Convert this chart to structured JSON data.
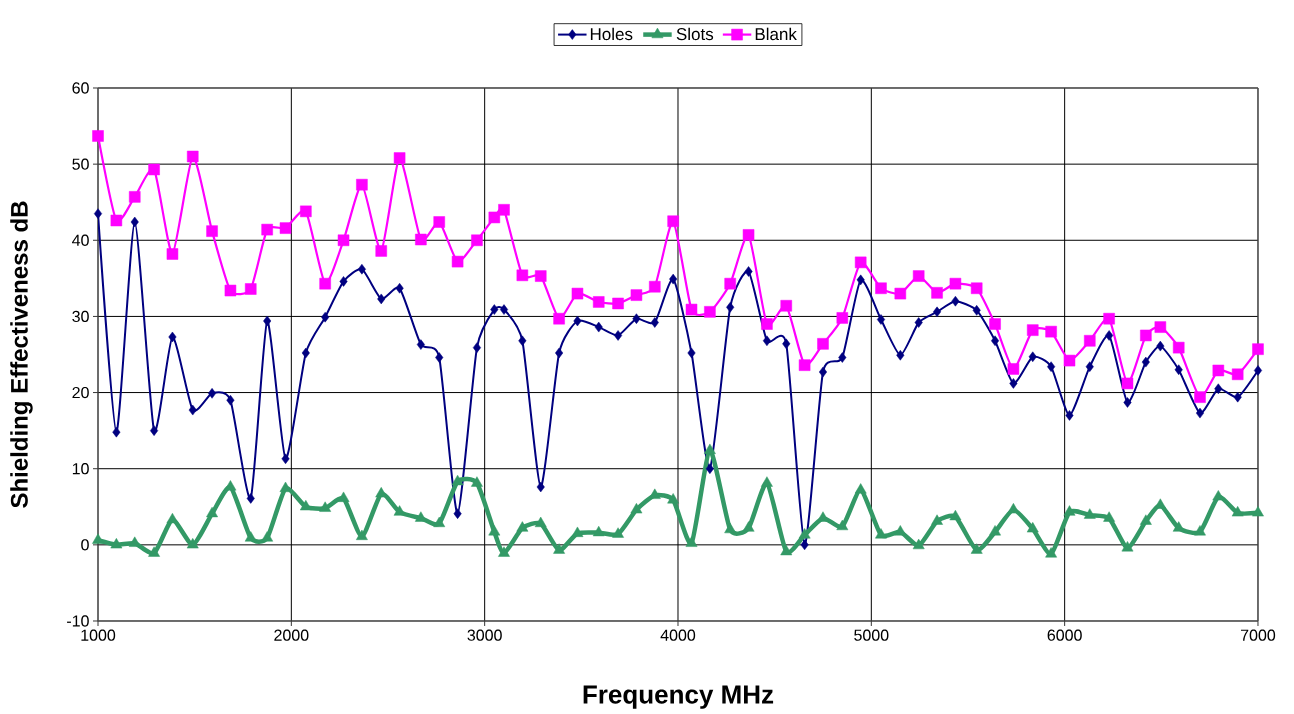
{
  "chart_data": {
    "type": "line",
    "xlabel": "Frequency MHz",
    "ylabel": "Shielding Effectiveness dB",
    "x": [
      1000,
      1095,
      1190,
      1290,
      1385,
      1490,
      1590,
      1685,
      1790,
      1875,
      1970,
      2075,
      2175,
      2270,
      2365,
      2465,
      2560,
      2670,
      2765,
      2860,
      2960,
      3050,
      3100,
      3195,
      3290,
      3385,
      3480,
      3590,
      3690,
      3785,
      3880,
      3975,
      4070,
      4165,
      4270,
      4365,
      4460,
      4560,
      4655,
      4750,
      4850,
      4945,
      5050,
      5150,
      5245,
      5340,
      5435,
      5545,
      5640,
      5735,
      5835,
      5930,
      6025,
      6130,
      6230,
      6325,
      6420,
      6495,
      6590,
      6700,
      6795,
      6895,
      7000
    ],
    "series": [
      {
        "name": "Holes",
        "color": "#000080",
        "marker": "diamond",
        "values": [
          43.5,
          14.8,
          42.4,
          15.0,
          27.3,
          17.7,
          19.9,
          19.0,
          6.1,
          29.4,
          11.3,
          25.2,
          29.9,
          34.6,
          36.2,
          32.3,
          33.7,
          26.3,
          24.6,
          4.1,
          25.9,
          30.9,
          30.9,
          26.8,
          7.6,
          25.2,
          29.4,
          28.6,
          27.5,
          29.7,
          29.2,
          34.9,
          25.2,
          10.0,
          31.2,
          35.9,
          26.8,
          26.4,
          0.0,
          22.7,
          24.6,
          34.8,
          29.6,
          24.9,
          29.2,
          30.6,
          32.0,
          30.8,
          26.8,
          21.2,
          24.7,
          23.4,
          17.0,
          23.4,
          27.5,
          18.7,
          24.0,
          26.1,
          23.0,
          17.3,
          20.5,
          19.4,
          22.9
        ]
      },
      {
        "name": "Slots",
        "color": "#339966",
        "marker": "triangle",
        "values": [
          0.6,
          0.0,
          0.2,
          -1.1,
          3.3,
          0.0,
          4.1,
          7.6,
          0.9,
          0.9,
          7.4,
          5.0,
          4.8,
          6.1,
          1.1,
          6.7,
          4.3,
          3.5,
          2.8,
          8.3,
          8.1,
          1.7,
          -1.1,
          2.2,
          2.8,
          -0.7,
          1.5,
          1.6,
          1.4,
          4.6,
          6.5,
          5.9,
          0.2,
          12.4,
          2.0,
          2.2,
          8.1,
          -0.9,
          1.3,
          3.5,
          2.4,
          7.2,
          1.3,
          1.7,
          -0.1,
          3.1,
          3.7,
          -0.7,
          1.7,
          4.6,
          2.1,
          -1.2,
          4.3,
          3.9,
          3.5,
          -0.4,
          3.1,
          5.2,
          2.2,
          1.7,
          6.3,
          4.2,
          4.2
        ]
      },
      {
        "name": "Blank",
        "color": "#ff00ff",
        "marker": "square",
        "values": [
          53.7,
          42.6,
          45.7,
          49.3,
          38.2,
          51.0,
          41.2,
          33.4,
          33.6,
          41.4,
          41.6,
          43.8,
          34.3,
          40.0,
          47.3,
          38.6,
          50.8,
          40.1,
          42.4,
          37.2,
          40.0,
          43.0,
          44.0,
          35.4,
          35.3,
          29.7,
          33.0,
          31.9,
          31.7,
          32.8,
          33.9,
          42.5,
          30.9,
          30.6,
          34.3,
          40.7,
          29.0,
          31.4,
          23.6,
          26.4,
          29.8,
          37.1,
          33.7,
          33.0,
          35.3,
          33.1,
          34.3,
          33.7,
          29.0,
          23.1,
          28.2,
          28.0,
          24.2,
          26.8,
          29.7,
          21.2,
          27.5,
          28.6,
          25.9,
          19.4,
          22.9,
          22.4,
          25.7
        ]
      }
    ],
    "xlim": [
      1000,
      7000
    ],
    "xticks": [
      1000,
      2000,
      3000,
      4000,
      5000,
      6000,
      7000
    ],
    "ylim": [
      -10,
      60
    ],
    "yticks": [
      -10,
      0,
      10,
      20,
      30,
      40,
      50,
      60
    ],
    "grid": true,
    "legend": "top",
    "line_style": "solid"
  }
}
